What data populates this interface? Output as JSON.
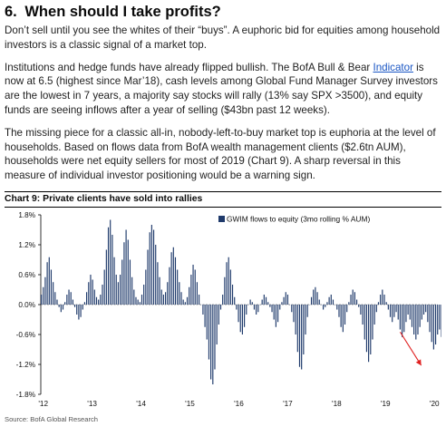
{
  "section": {
    "number": "6.",
    "title": "When should I take profits?"
  },
  "paragraphs": {
    "p1": "Don’t sell until you see the whites of their “buys”. A euphoric bid for equities among household investors is a classic signal of a market top.",
    "p2_before_link": "Institutions and hedge funds have already flipped bullish. The BofA Bull & Bear ",
    "p2_link": "Indicator",
    "p2_after_link": " is now at 6.5 (highest since Mar’18), cash levels among Global Fund Manager Survey investors are the lowest in 7 years, a majority say stocks will rally (13% say SPX >3500), and equity funds are seeing inflows after a year of selling ($43bn past 12 weeks).",
    "p3": "The missing piece for a classic all-in, nobody-left-to-buy market top is euphoria at the level of households. Based on flows data from BofA wealth management clients ($2.6tn AUM), households were net equity sellers for most of 2019 (Chart 9). A sharp reversal in this measure of individual investor positioning would be a warning sign."
  },
  "chart": {
    "title": "Chart 9: Private clients have sold into rallies",
    "source": "Source: BofA Global Research"
  },
  "chart_data": {
    "type": "bar",
    "title": "Chart 9: Private clients have sold into rallies",
    "xlabel": "",
    "ylabel": "",
    "ylim": [
      -1.8,
      1.8
    ],
    "ytick_values": [
      1.8,
      1.2,
      0.6,
      0.0,
      -0.6,
      -1.2,
      -1.8
    ],
    "ytick_labels": [
      "1.8%",
      "1.2%",
      "0.6%",
      "0.0%",
      "-0.6%",
      "-1.2%",
      "-1.8%"
    ],
    "xtick_labels": [
      "'12",
      "'13",
      "'14",
      "'15",
      "'16",
      "'17",
      "'18",
      "'19",
      "'20"
    ],
    "xrange_years": [
      2012,
      2020
    ],
    "grid": false,
    "legend": "top-right",
    "bar_color": "#1f3a6b",
    "annotation": "red downward arrow near end of series",
    "arrow_color": "#e02020",
    "series": [
      {
        "name": "GWIM flows to equity (3mo rolling % AUM)",
        "weekly_step_years": 0.0192,
        "start_year": 2012.0,
        "values": [
          0.2,
          0.35,
          0.55,
          0.85,
          0.95,
          0.7,
          0.45,
          0.25,
          0.1,
          -0.05,
          -0.15,
          -0.1,
          0.05,
          0.2,
          0.3,
          0.25,
          0.1,
          -0.05,
          -0.2,
          -0.3,
          -0.25,
          -0.1,
          0.05,
          0.25,
          0.45,
          0.6,
          0.5,
          0.3,
          0.15,
          0.1,
          0.2,
          0.4,
          0.7,
          1.1,
          1.55,
          1.7,
          1.4,
          0.95,
          0.6,
          0.45,
          0.6,
          0.9,
          1.25,
          1.5,
          1.3,
          0.9,
          0.55,
          0.3,
          0.15,
          0.1,
          0.05,
          0.2,
          0.4,
          0.7,
          1.1,
          1.45,
          1.6,
          1.5,
          1.2,
          0.85,
          0.55,
          0.3,
          0.2,
          0.25,
          0.45,
          0.75,
          1.05,
          1.15,
          0.95,
          0.7,
          0.45,
          0.25,
          0.1,
          0.05,
          0.15,
          0.35,
          0.6,
          0.8,
          0.7,
          0.45,
          0.2,
          0.0,
          -0.2,
          -0.45,
          -0.7,
          -1.1,
          -1.5,
          -1.6,
          -1.3,
          -0.8,
          -0.4,
          -0.1,
          0.2,
          0.55,
          0.85,
          0.95,
          0.7,
          0.4,
          0.15,
          -0.1,
          -0.35,
          -0.55,
          -0.6,
          -0.45,
          -0.2,
          0.0,
          0.1,
          0.05,
          -0.1,
          -0.2,
          -0.15,
          0.0,
          0.1,
          0.2,
          0.15,
          0.05,
          -0.05,
          -0.15,
          -0.3,
          -0.45,
          -0.35,
          -0.1,
          0.05,
          0.15,
          0.25,
          0.2,
          0.0,
          -0.15,
          -0.35,
          -0.6,
          -0.95,
          -1.25,
          -1.3,
          -1.0,
          -0.6,
          -0.25,
          0.0,
          0.15,
          0.3,
          0.35,
          0.25,
          0.1,
          0.0,
          -0.1,
          -0.05,
          0.05,
          0.15,
          0.2,
          0.1,
          0.0,
          -0.1,
          -0.25,
          -0.45,
          -0.55,
          -0.4,
          -0.15,
          0.05,
          0.2,
          0.3,
          0.25,
          0.1,
          -0.05,
          -0.2,
          -0.4,
          -0.7,
          -0.95,
          -1.15,
          -1.0,
          -0.7,
          -0.4,
          -0.15,
          0.05,
          0.2,
          0.3,
          0.2,
          0.05,
          -0.1,
          -0.25,
          -0.35,
          -0.25,
          -0.15,
          -0.3,
          -0.5,
          -0.65,
          -0.55,
          -0.35,
          -0.2,
          -0.3,
          -0.45,
          -0.6,
          -0.7,
          -0.6,
          -0.45,
          -0.3,
          -0.2,
          -0.15,
          -0.35,
          -0.55,
          -0.75,
          -0.9,
          -0.8,
          -0.6,
          -0.5,
          -0.65,
          -0.7
        ]
      }
    ]
  }
}
